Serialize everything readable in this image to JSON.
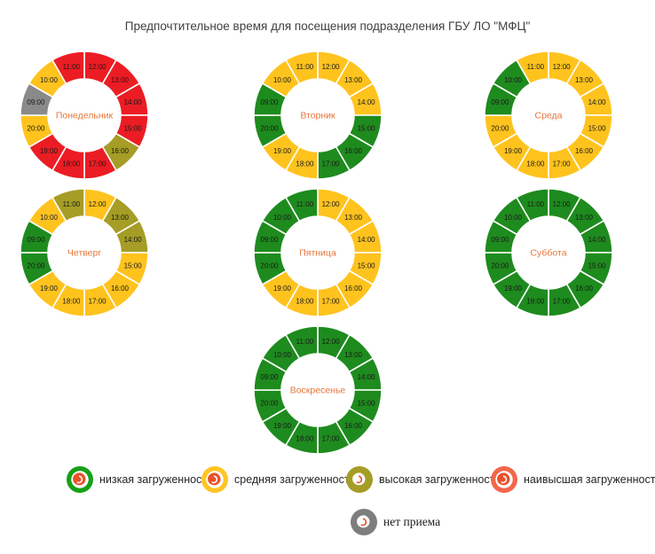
{
  "title": "Предпочтительное время для посещения подразделения ГБУ ЛО \"МФЦ\"",
  "chart_data": {
    "type": "pie",
    "subtype": "donut-grid",
    "description": "Seven 12-segment donut charts, one per weekday; each segment is one hour 09:00-20:00 colored by visitor load level; equal 30-degree slices",
    "hours_clockwise_from_top": [
      "12:00",
      "13:00",
      "14:00",
      "15:00",
      "16:00",
      "17:00",
      "18:00",
      "19:00",
      "20:00",
      "09:00",
      "10:00",
      "11:00"
    ],
    "day_name_color": "#e5763a",
    "time_label_color": "#1a1a1a",
    "levels": {
      "low": {
        "label": "низкая загруженность",
        "color": "#1e8b1e"
      },
      "medium": {
        "label": "средняя загруженность",
        "color": "#ffc31e"
      },
      "high": {
        "label": "высокая загруженность",
        "color": "#a59d26"
      },
      "highest": {
        "label": "наивысшая загруженность",
        "color": "#ec1c24"
      },
      "closed": {
        "label": "нет приема",
        "color": "#8a8a8a"
      }
    },
    "days": [
      {
        "name": "Понедельник",
        "segments": {
          "09:00": "closed",
          "10:00": "medium",
          "11:00": "highest",
          "12:00": "highest",
          "13:00": "highest",
          "14:00": "highest",
          "15:00": "highest",
          "16:00": "high",
          "17:00": "highest",
          "18:00": "highest",
          "19:00": "highest",
          "20:00": "medium"
        }
      },
      {
        "name": "Вторник",
        "segments": {
          "09:00": "low",
          "10:00": "medium",
          "11:00": "medium",
          "12:00": "medium",
          "13:00": "medium",
          "14:00": "medium",
          "15:00": "low",
          "16:00": "low",
          "17:00": "low",
          "18:00": "medium",
          "19:00": "medium",
          "20:00": "low"
        }
      },
      {
        "name": "Среда",
        "segments": {
          "09:00": "low",
          "10:00": "low",
          "11:00": "medium",
          "12:00": "medium",
          "13:00": "medium",
          "14:00": "medium",
          "15:00": "medium",
          "16:00": "medium",
          "17:00": "medium",
          "18:00": "medium",
          "19:00": "medium",
          "20:00": "medium"
        }
      },
      {
        "name": "Четверг",
        "segments": {
          "09:00": "low",
          "10:00": "medium",
          "11:00": "high",
          "12:00": "medium",
          "13:00": "high",
          "14:00": "high",
          "15:00": "medium",
          "16:00": "medium",
          "17:00": "medium",
          "18:00": "medium",
          "19:00": "medium",
          "20:00": "low"
        }
      },
      {
        "name": "Пятница",
        "segments": {
          "09:00": "low",
          "10:00": "low",
          "11:00": "low",
          "12:00": "medium",
          "13:00": "medium",
          "14:00": "medium",
          "15:00": "medium",
          "16:00": "medium",
          "17:00": "medium",
          "18:00": "medium",
          "19:00": "medium",
          "20:00": "low"
        }
      },
      {
        "name": "Суббота",
        "segments": {
          "09:00": "low",
          "10:00": "low",
          "11:00": "low",
          "12:00": "low",
          "13:00": "low",
          "14:00": "low",
          "15:00": "low",
          "16:00": "low",
          "17:00": "low",
          "18:00": "low",
          "19:00": "low",
          "20:00": "low"
        }
      },
      {
        "name": "Воскресенье",
        "segments": {
          "09:00": "low",
          "10:00": "low",
          "11:00": "low",
          "12:00": "low",
          "13:00": "low",
          "14:00": "low",
          "15:00": "low",
          "16:00": "low",
          "17:00": "low",
          "18:00": "low",
          "19:00": "low",
          "20:00": "low"
        }
      }
    ]
  },
  "legend": {
    "row1": [
      {
        "level": "low",
        "label": "низкая загруженность",
        "color": "#17a017",
        "style": "ring"
      },
      {
        "level": "medium",
        "label": "средняя загруженность",
        "color": "#ffc425",
        "style": "ring"
      },
      {
        "level": "high",
        "label": "высокая загруженность",
        "color": "#a59d26",
        "style": "solid"
      },
      {
        "level": "highest",
        "label": "наивысшая загруженность",
        "color": "#f2664b",
        "style": "ring"
      }
    ],
    "row2": [
      {
        "level": "closed",
        "label": "нет приема",
        "color": "#7e7e7e",
        "style": "solid"
      }
    ],
    "glyph_color": "#e8512a"
  }
}
